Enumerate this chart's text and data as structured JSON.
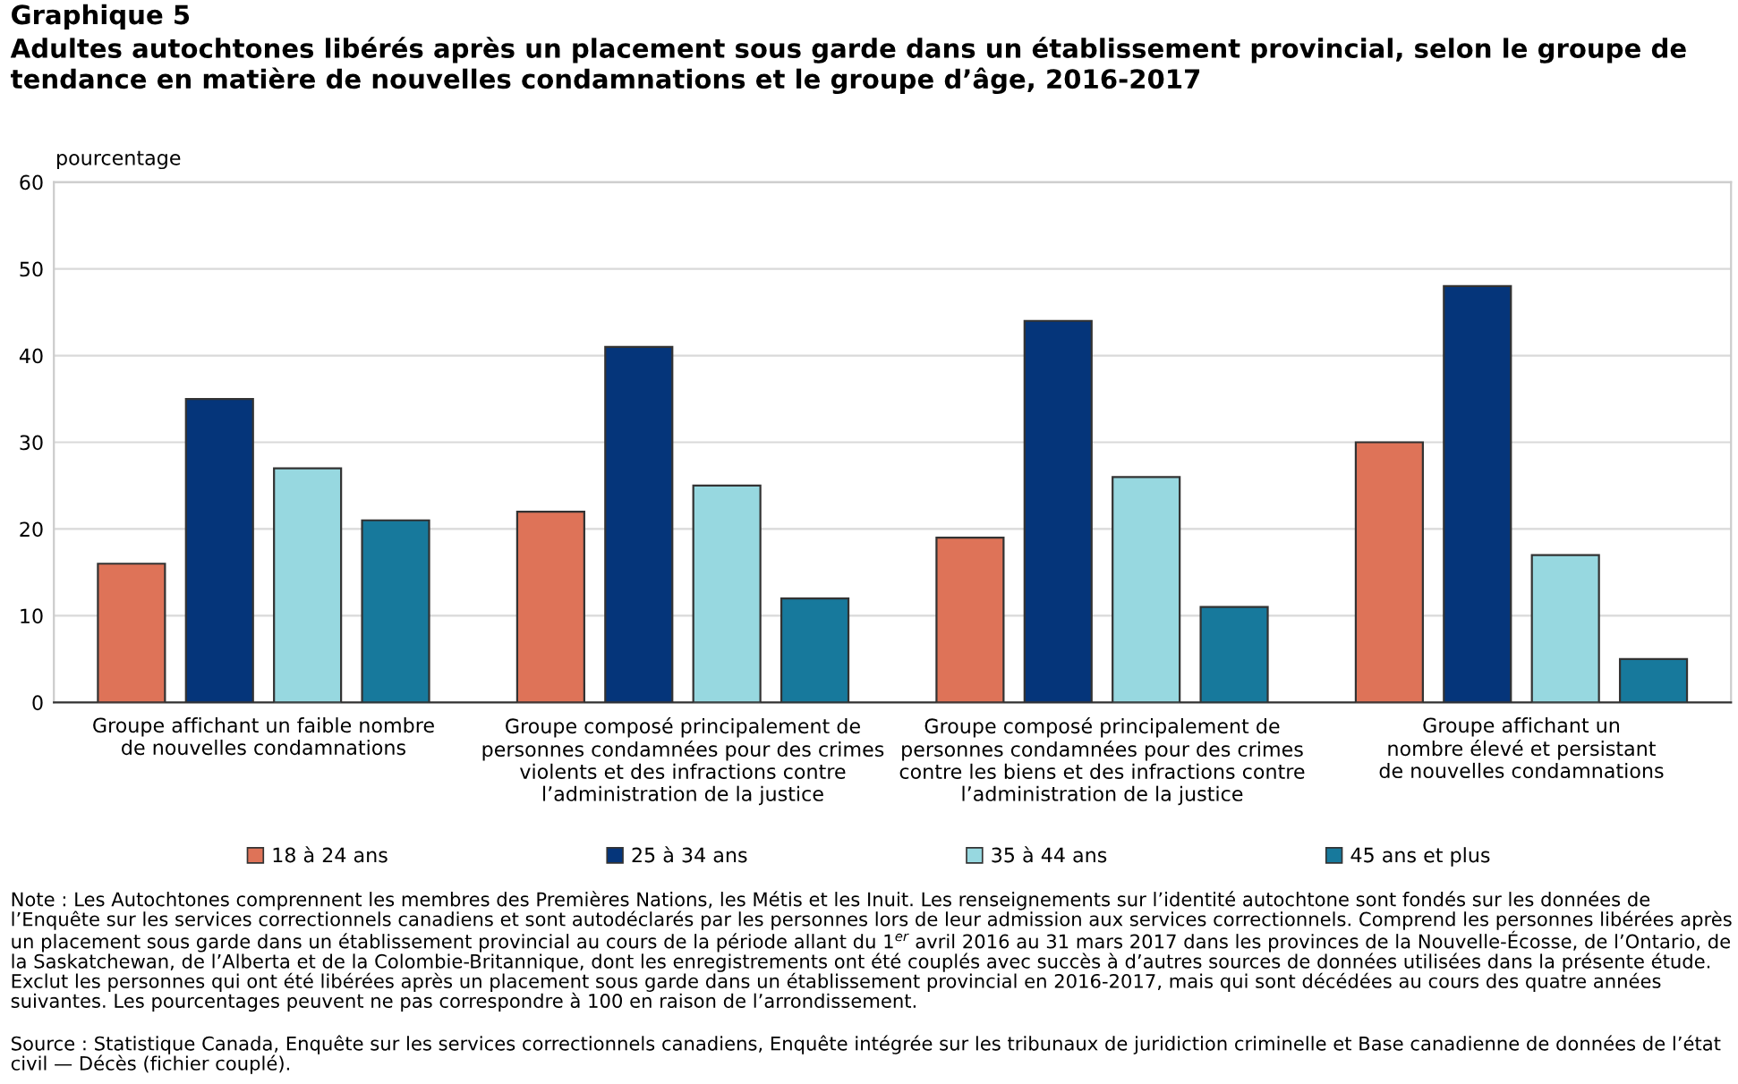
{
  "chart_data": {
    "type": "bar",
    "title": "Graphique 5",
    "subtitle": "Adultes autochtones libérés après un placement sous garde dans un établissement provincial, selon le groupe de\ntendance en matière de nouvelles condamnations et le groupe d’âge, 2016-2017",
    "ylabel": "pourcentage",
    "categories": [
      "Groupe affichant un faible nombre\nde nouvelles condamnations",
      "Groupe composé principalement de\npersonnes condamnées pour des crimes\nviolents et des infractions contre\nl’administration de la justice",
      "Groupe composé principalement de\npersonnes condamnées pour des crimes\ncontre les biens et des infractions contre\nl’administration de la justice",
      "Groupe affichant un\nnombre élevé et persistant\nde nouvelles condamnations"
    ],
    "series": [
      {
        "name": "18 à 24 ans",
        "color": "#de7358",
        "values": [
          16,
          22,
          19,
          30
        ]
      },
      {
        "name": "25 à 34 ans",
        "color": "#05357a",
        "values": [
          35,
          41,
          44,
          48
        ]
      },
      {
        "name": "35 à 44 ans",
        "color": "#97d8e0",
        "values": [
          27,
          25,
          26,
          17
        ]
      },
      {
        "name": "45 ans et plus",
        "color": "#17799c",
        "values": [
          21,
          12,
          11,
          5
        ]
      }
    ],
    "ylim": [
      0,
      60
    ],
    "yticks": [
      0,
      10,
      20,
      30,
      40,
      50,
      60
    ],
    "grid": "y",
    "legend": "bottom",
    "annotations": [
      "Note : Les Autochtones comprennent les membres des Premières Nations, les Métis et les Inuit. Les renseignements sur l’identité autochtone sont fondés sur les données de l’Enquête sur les services correctionnels canadiens et sont autodéclarés par les personnes lors de leur admission aux services correctionnels. Comprend les personnes libérées après un placement sous garde dans un établissement provincial au cours de la période allant du 1$^{er}$ avril 2016 au 31 mars 2017 dans les provinces de la Nouvelle-Écosse, de l’Ontario, de la Saskatchewan, de l’Alberta et de la Colombie-Britannique, dont les enregistrements ont été couplés avec succès à d’autres sources de données utilisées dans la présente étude. Exclut les personnes qui ont été libérées après un placement sous garde dans un établissement provincial en 2016-2017, mais qui sont décédées au cours des quatre années suivantes. Les pourcentages peuvent ne pas correspondre à 100 en raison de l’arrondissement.",
      "Source : Statistique Canada, Enquête sur les services correctionnels canadiens, Enquête intégrée sur les tribunaux de juridiction criminelle et Base canadienne de données de l’état civil — Décès (fichier couplé)."
    ]
  }
}
